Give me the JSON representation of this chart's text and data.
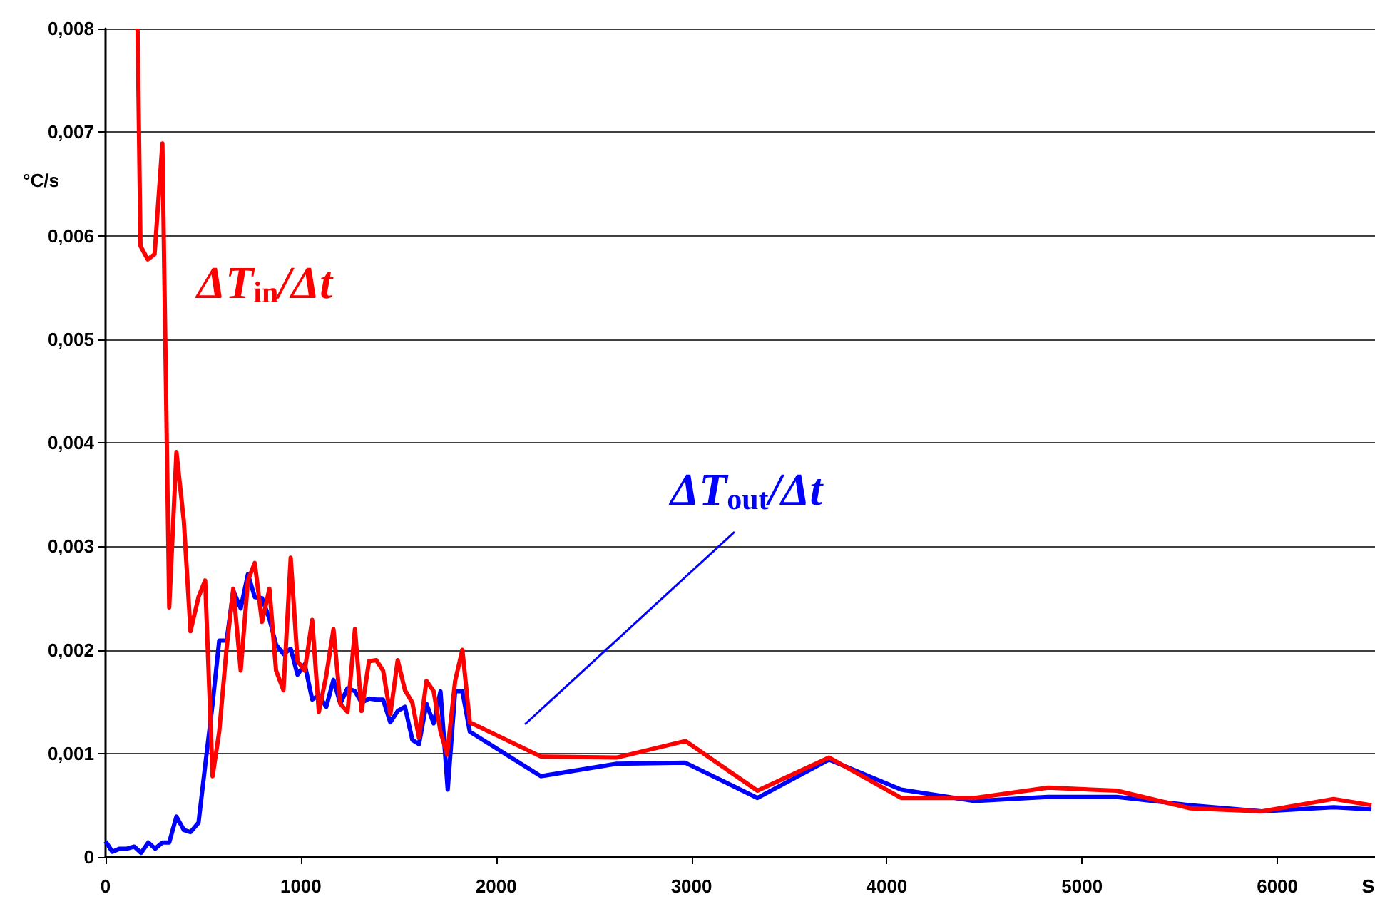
{
  "chart_data": {
    "type": "line",
    "ylabel": "°C/s",
    "xlabel": "s",
    "xlim": [
      0,
      6500
    ],
    "xticks": [
      0,
      1000,
      2000,
      3000,
      4000,
      5000,
      6000
    ],
    "ylim": [
      0,
      0.008
    ],
    "yticks": [
      0,
      {
        "value": 0.001,
        "label": "0,001"
      },
      {
        "value": 0.002,
        "label": "0,002"
      },
      {
        "value": 0.003,
        "label": "0,003"
      },
      {
        "value": 0.004,
        "label": "0,004"
      },
      {
        "value": 0.005,
        "label": "0,005"
      },
      {
        "value": 0.006,
        "label": "0,006"
      },
      {
        "value": 0.007,
        "label": "0,007"
      },
      {
        "value": 0.008,
        "label": "0,008"
      }
    ],
    "grid": "y",
    "legend": false,
    "marker": "none",
    "line_style": "solid",
    "series": [
      {
        "name": "ΔT$_{in}$/Δt",
        "color": "#ff0000",
        "x": [
          164,
          179,
          216,
          251,
          291,
          326,
          363,
          401,
          435,
          476,
          510,
          548,
          582,
          620,
          654,
          692,
          729,
          764,
          801,
          839,
          873,
          911,
          948,
          983,
          1020,
          1058,
          1092,
          1130,
          1167,
          1202,
          1239,
          1277,
          1311,
          1349,
          1386,
          1421,
          1458,
          1496,
          1533,
          1571,
          1605,
          1643,
          1680,
          1715,
          1749,
          1790,
          1827,
          1865,
          2229,
          2617,
          2969,
          3338,
          3705,
          4074,
          4450,
          4826,
          5178,
          5555,
          5919,
          6288,
          6482
        ],
        "values": [
          0.008,
          0.0059,
          0.00577,
          0.00582,
          0.00689,
          0.00241,
          0.00391,
          0.00324,
          0.00218,
          0.00251,
          0.00267,
          0.00078,
          0.00121,
          0.00202,
          0.00259,
          0.0018,
          0.00267,
          0.00284,
          0.00227,
          0.00259,
          0.0018,
          0.00161,
          0.00289,
          0.00189,
          0.0018,
          0.00229,
          0.0014,
          0.00175,
          0.0022,
          0.00148,
          0.0014,
          0.0022,
          0.00141,
          0.00189,
          0.0019,
          0.0018,
          0.00138,
          0.0019,
          0.00161,
          0.00149,
          0.00115,
          0.0017,
          0.0016,
          0.00121,
          0.00099,
          0.0017,
          0.002,
          0.0013,
          0.00097,
          0.00096,
          0.00112,
          0.00064,
          0.00096,
          0.00057,
          0.00057,
          0.00067,
          0.00064,
          0.00047,
          0.00044,
          0.00056,
          0.0005
        ]
      },
      {
        "name": "ΔT$_{out}$/Δt",
        "color": "#0000ff",
        "x": [
          0,
          35,
          72,
          110,
          147,
          182,
          219,
          254,
          291,
          326,
          363,
          401,
          435,
          476,
          510,
          548,
          582,
          620,
          654,
          692,
          729,
          764,
          801,
          839,
          873,
          911,
          948,
          983,
          1020,
          1058,
          1092,
          1130,
          1167,
          1202,
          1239,
          1277,
          1311,
          1349,
          1386,
          1421,
          1458,
          1496,
          1533,
          1571,
          1605,
          1643,
          1680,
          1715,
          1752,
          1790,
          1827,
          1865,
          2229,
          2617,
          2969,
          3338,
          3705,
          4074,
          4450,
          4826,
          5178,
          5555,
          5919,
          6288,
          6482
        ],
        "values": [
          0.00015,
          5e-05,
          8e-05,
          8e-05,
          0.0001,
          4e-05,
          0.00014,
          8e-05,
          0.00014,
          0.00014,
          0.00039,
          0.00026,
          0.00024,
          0.00033,
          0.00088,
          0.00148,
          0.00209,
          0.00209,
          0.00257,
          0.0024,
          0.00273,
          0.00251,
          0.0025,
          0.0023,
          0.00205,
          0.00196,
          0.00201,
          0.00176,
          0.00186,
          0.00152,
          0.00156,
          0.00145,
          0.00171,
          0.00148,
          0.00163,
          0.0016,
          0.00149,
          0.00153,
          0.00152,
          0.00152,
          0.0013,
          0.00141,
          0.00145,
          0.00113,
          0.00109,
          0.00148,
          0.00129,
          0.0016,
          0.00065,
          0.0016,
          0.0016,
          0.00121,
          0.00078,
          0.0009,
          0.00091,
          0.00057,
          0.00094,
          0.00065,
          0.00054,
          0.00058,
          0.00058,
          0.0005,
          0.00044,
          0.00048,
          0.00046
        ]
      }
    ]
  }
}
